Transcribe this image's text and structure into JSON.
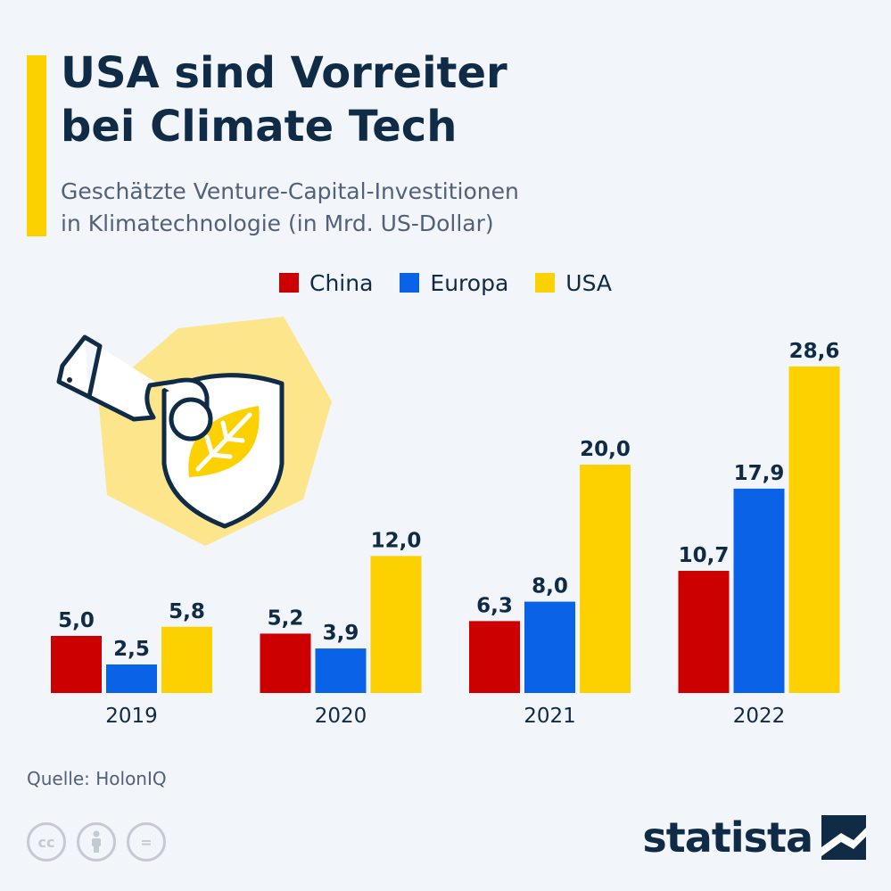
{
  "header": {
    "title_line1": "USA sind Vorreiter",
    "title_line2": "bei Climate Tech",
    "subtitle_line1": "Geschätzte Venture-Capital-Investitionen",
    "subtitle_line2": "in Klimatechnologie (in Mrd. US-Dollar)"
  },
  "chart_data": {
    "type": "bar",
    "title": "USA sind Vorreiter bei Climate Tech",
    "subtitle": "Geschätzte Venture-Capital-Investitionen in Klimatechnologie (in Mrd. US-Dollar)",
    "categories": [
      "2019",
      "2020",
      "2021",
      "2022"
    ],
    "series": [
      {
        "name": "China",
        "color": "#cc0000",
        "values": [
          5.0,
          5.2,
          6.3,
          10.7
        ],
        "labels": [
          "5,0",
          "5,2",
          "6,3",
          "10,7"
        ]
      },
      {
        "name": "Europa",
        "color": "#0a62e6",
        "values": [
          2.5,
          3.9,
          8.0,
          17.9
        ],
        "labels": [
          "2,5",
          "3,9",
          "8,0",
          "17,9"
        ]
      },
      {
        "name": "USA",
        "color": "#fdd000",
        "values": [
          5.8,
          12.0,
          20.0,
          28.6
        ],
        "labels": [
          "5,8",
          "12,0",
          "20,0",
          "28,6"
        ]
      }
    ],
    "legend_position": "top-center",
    "grid": false
  },
  "footer": {
    "source": "Quelle: HolonIQ",
    "license_icons": [
      "cc-icon",
      "attribution-icon",
      "no-derivatives-icon"
    ],
    "license_labels": {
      "cc": "cc",
      "nd": "="
    },
    "brand": "statista"
  },
  "colors": {
    "background": "#f2f5f9",
    "accent": "#fdd000",
    "title": "#0f2b46",
    "subtitle": "#52607a"
  }
}
